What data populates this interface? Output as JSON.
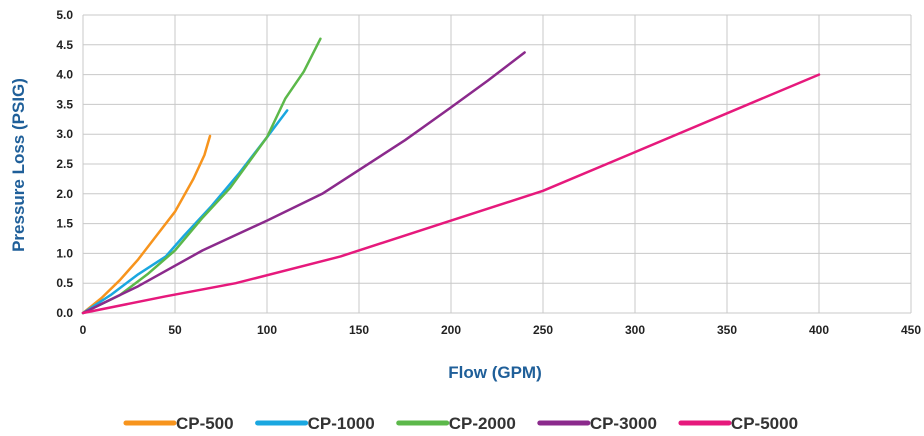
{
  "chart_data": {
    "type": "line",
    "title": "",
    "xlabel": "Flow (GPM)",
    "ylabel": "Pressure Loss (PSIG)",
    "xlim": [
      0,
      450
    ],
    "ylim": [
      0,
      5.0
    ],
    "x_ticks": [
      "0",
      "50",
      "100",
      "150",
      "200",
      "250",
      "300",
      "350",
      "400",
      "450"
    ],
    "y_ticks": [
      "0.0",
      "0.5",
      "1.0",
      "1.5",
      "2.0",
      "2.5",
      "3.0",
      "3.5",
      "4.0",
      "4.5",
      "5.0"
    ],
    "grid": true,
    "legend_position": "bottom",
    "series": [
      {
        "name": "CP-500",
        "color": "#f7941d",
        "points": [
          [
            0,
            0
          ],
          [
            10,
            0.25
          ],
          [
            20,
            0.55
          ],
          [
            30,
            0.9
          ],
          [
            40,
            1.3
          ],
          [
            50,
            1.7
          ],
          [
            60,
            2.25
          ],
          [
            66,
            2.65
          ],
          [
            69,
            2.97
          ]
        ]
      },
      {
        "name": "CP-1000",
        "color": "#1aa7e0",
        "points": [
          [
            0,
            0
          ],
          [
            15,
            0.3
          ],
          [
            30,
            0.65
          ],
          [
            45,
            0.95
          ],
          [
            55,
            1.3
          ],
          [
            70,
            1.8
          ],
          [
            85,
            2.35
          ],
          [
            100,
            2.95
          ],
          [
            111,
            3.4
          ]
        ]
      },
      {
        "name": "CP-2000",
        "color": "#5cb84a",
        "points": [
          [
            0,
            0
          ],
          [
            20,
            0.3
          ],
          [
            35,
            0.65
          ],
          [
            50,
            1.05
          ],
          [
            65,
            1.6
          ],
          [
            80,
            2.1
          ],
          [
            100,
            2.95
          ],
          [
            110,
            3.6
          ],
          [
            120,
            4.05
          ],
          [
            129,
            4.6
          ]
        ]
      },
      {
        "name": "CP-3000",
        "color": "#8b2a8c",
        "points": [
          [
            0,
            0
          ],
          [
            30,
            0.45
          ],
          [
            65,
            1.05
          ],
          [
            100,
            1.55
          ],
          [
            130,
            2.0
          ],
          [
            175,
            2.9
          ],
          [
            200,
            3.45
          ],
          [
            220,
            3.9
          ],
          [
            240,
            4.37
          ]
        ]
      },
      {
        "name": "CP-5000",
        "color": "#e6197c",
        "points": [
          [
            0,
            0
          ],
          [
            45,
            0.28
          ],
          [
            83,
            0.5
          ],
          [
            140,
            0.95
          ],
          [
            195,
            1.5
          ],
          [
            250,
            2.05
          ],
          [
            300,
            2.7
          ],
          [
            350,
            3.35
          ],
          [
            400,
            4.0
          ]
        ]
      }
    ]
  }
}
